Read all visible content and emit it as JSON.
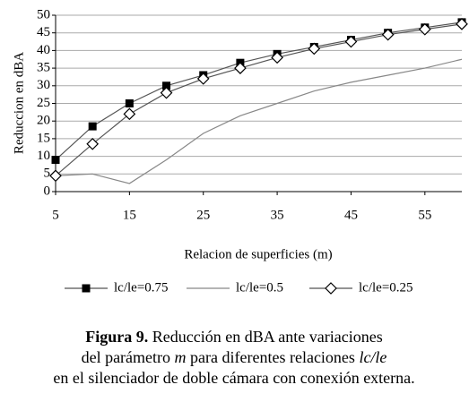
{
  "chart_data": {
    "type": "line",
    "x_label": "Relacion de superficies (m)",
    "y_label": "Reduccion en dBA",
    "x": [
      5,
      10,
      15,
      20,
      25,
      30,
      35,
      40,
      45,
      50,
      55,
      60
    ],
    "xlim": [
      5,
      60
    ],
    "xticks": [
      5,
      15,
      25,
      35,
      45,
      55
    ],
    "ylim": [
      0,
      50
    ],
    "yticks": [
      0,
      5,
      10,
      15,
      20,
      25,
      30,
      35,
      40,
      45,
      50
    ],
    "grid": true,
    "legend": "bottom",
    "series": [
      {
        "name": "lc/le=0.75",
        "color": "#000000",
        "line_color": "#555555",
        "marker": "square",
        "values": [
          9,
          18.5,
          25,
          30,
          33,
          36.5,
          39,
          41,
          43,
          45,
          46.5,
          48
        ]
      },
      {
        "name": "lc/le=0.5",
        "color": "#888888",
        "line_color": "#888888",
        "marker": "none",
        "values": [
          4.5,
          5,
          2.3,
          9,
          16.5,
          21.5,
          25,
          28.5,
          31,
          33,
          35,
          37.5
        ]
      },
      {
        "name": "lc/le=0.25",
        "color": "#000000",
        "line_color": "#555555",
        "marker": "diamond",
        "values": [
          4.5,
          13.5,
          22,
          28,
          32,
          35,
          38,
          40.5,
          42.5,
          44.5,
          46,
          47.5
        ]
      }
    ]
  },
  "caption": {
    "label": "Figura 9.",
    "line1": " Reducción en dBA ante variaciones",
    "line2": [
      "del parámetro ",
      "m",
      " para diferentes relaciones ",
      "lc/le"
    ],
    "line3": "en el silenciador de doble cámara con conexión externa."
  }
}
